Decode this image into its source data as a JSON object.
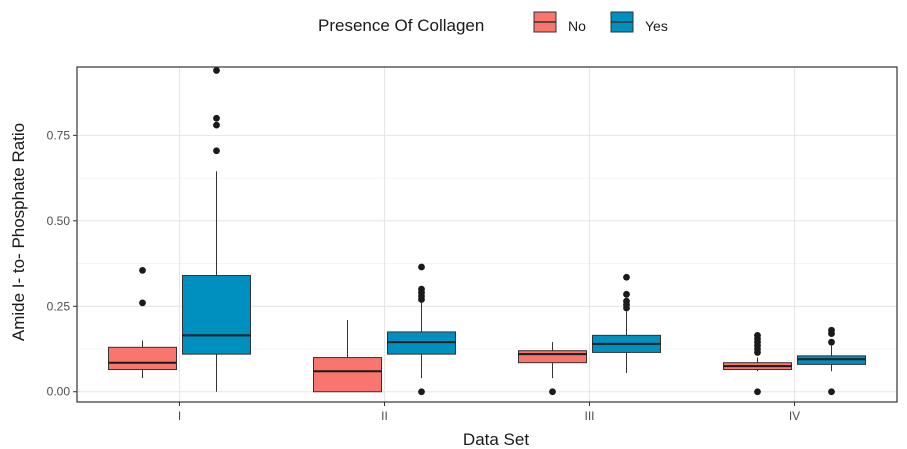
{
  "chart_data": {
    "type": "boxplot",
    "xlabel": "Data Set",
    "ylabel": "Amide I- to- Phosphate Ratio",
    "categories": [
      "I",
      "II",
      "III",
      "IV"
    ],
    "ylim": [
      -0.03,
      0.95
    ],
    "yticks": [
      0.0,
      0.25,
      0.5,
      0.75
    ],
    "ytick_labels": [
      "0.00",
      "0.25",
      "0.50",
      "0.75"
    ],
    "grid": true,
    "legend": {
      "title": "Presence Of Collagen",
      "position": "top",
      "entries": [
        "No",
        "Yes"
      ]
    },
    "series": [
      {
        "name": "No",
        "color": "#F8766D",
        "boxes": [
          {
            "category": "I",
            "low": 0.04,
            "q1": 0.065,
            "median": 0.085,
            "q3": 0.13,
            "high": 0.15,
            "outliers": [
              0.26,
              0.355
            ]
          },
          {
            "category": "II",
            "low": 0.0,
            "q1": 0.0,
            "median": 0.06,
            "q3": 0.1,
            "high": 0.21,
            "outliers": []
          },
          {
            "category": "III",
            "low": 0.04,
            "q1": 0.085,
            "median": 0.11,
            "q3": 0.12,
            "high": 0.145,
            "outliers": [
              0.0
            ]
          },
          {
            "category": "IV",
            "low": 0.06,
            "q1": 0.065,
            "median": 0.075,
            "q3": 0.085,
            "high": 0.1,
            "outliers": [
              0.0,
              0.115,
              0.125,
              0.135,
              0.145,
              0.155,
              0.165
            ]
          }
        ]
      },
      {
        "name": "Yes",
        "color": "#0090BF",
        "boxes": [
          {
            "category": "I",
            "low": 0.0,
            "q1": 0.11,
            "median": 0.165,
            "q3": 0.34,
            "high": 0.645,
            "outliers": [
              0.705,
              0.78,
              0.8,
              0.94
            ]
          },
          {
            "category": "II",
            "low": 0.04,
            "q1": 0.11,
            "median": 0.145,
            "q3": 0.175,
            "high": 0.26,
            "outliers": [
              0.0,
              0.27,
              0.28,
              0.29,
              0.3,
              0.365
            ]
          },
          {
            "category": "III",
            "low": 0.055,
            "q1": 0.115,
            "median": 0.14,
            "q3": 0.165,
            "high": 0.235,
            "outliers": [
              0.245,
              0.255,
              0.265,
              0.285,
              0.335
            ]
          },
          {
            "category": "IV",
            "low": 0.06,
            "q1": 0.08,
            "median": 0.095,
            "q3": 0.105,
            "high": 0.135,
            "outliers": [
              0.0,
              0.145,
              0.17,
              0.18
            ]
          }
        ]
      }
    ]
  }
}
